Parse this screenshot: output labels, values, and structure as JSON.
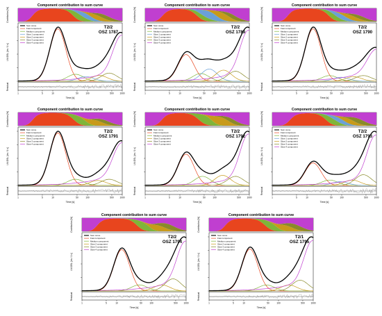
{
  "figure": {
    "panel_heading": "Component contribution to sum curve",
    "contrib_ylabel": "Contribution [%]",
    "lm_ylabel": "LM-OSL [cts / 1 s]",
    "xlabel": "Time [s]",
    "residual_label": "Residual",
    "x_ticks": [
      "1",
      "5",
      "10",
      "50",
      "100",
      "500",
      "1000"
    ]
  },
  "legend_full": [
    "Sum curve",
    "Fast component",
    "Medium component",
    "Slow 1 component",
    "Slow 2 component",
    "Slow 3 component",
    "Slow 4 component"
  ],
  "legend_reduced": [
    "Sum curve",
    "Fast component",
    "Medium component",
    "Slow 2 component",
    "Slow 3 component",
    "Slow 4 component"
  ],
  "colors": {
    "sum": "#000000",
    "fast": "#e8451e",
    "medium": "#7fb539",
    "slow1": "#6aa0d8",
    "slow2": "#c89a1a",
    "slow3": "#8a8a2a",
    "slow4": "#c03fd0",
    "residual": "#9a9a9a"
  },
  "chart_data": [
    {
      "type": "line",
      "title": "Component contribution to sum curve",
      "sample": "T2/2",
      "id": "OSZ 1787",
      "components": "full",
      "xlim": [
        1,
        1000
      ],
      "xlabel": "Time [s]",
      "ylabel": "LM-OSL [cts / 1 s]",
      "peaks": {
        "fast": {
          "t": 14,
          "h": 0.9
        },
        "medium": {
          "t": 45,
          "h": 0.12
        },
        "slow1": {
          "t": 90,
          "h": 0.08
        },
        "slow2": {
          "t": 220,
          "h": 0.1
        },
        "slow3": {
          "t": 420,
          "h": 0.14
        },
        "slow4": {
          "t": 900,
          "h": 0.55
        }
      }
    },
    {
      "type": "line",
      "title": "Component contribution to sum curve",
      "sample": "T2/2",
      "id": "OSZ 1789",
      "components": "full",
      "xlim": [
        1,
        1000
      ],
      "xlabel": "Time [s]",
      "ylabel": "LM-OSL [cts / 1 s]",
      "peaks": {
        "fast": {
          "t": 15,
          "h": 0.48
        },
        "medium": {
          "t": 40,
          "h": 0.14
        },
        "slow1": {
          "t": 70,
          "h": 0.22
        },
        "slow2": {
          "t": 180,
          "h": 0.2
        },
        "slow3": {
          "t": 400,
          "h": 0.18
        },
        "slow4": {
          "t": 900,
          "h": 0.68
        }
      }
    },
    {
      "type": "line",
      "title": "Component contribution to sum curve",
      "sample": "T2/2",
      "id": "OSZ 1790",
      "components": "full",
      "xlim": [
        1,
        1000
      ],
      "xlabel": "Time [s]",
      "ylabel": "LM-OSL [cts / 1 s]",
      "peaks": {
        "fast": {
          "t": 15,
          "h": 0.92
        },
        "medium": {
          "t": 45,
          "h": 0.1
        },
        "slow1": {
          "t": 95,
          "h": 0.07
        },
        "slow2": {
          "t": 220,
          "h": 0.08
        },
        "slow3": {
          "t": 420,
          "h": 0.1
        },
        "slow4": {
          "t": 900,
          "h": 0.32
        }
      }
    },
    {
      "type": "line",
      "title": "Component contribution to sum curve",
      "sample": "T2/2",
      "id": "OSZ 1791",
      "components": "reduced",
      "xlim": [
        1,
        1000
      ],
      "xlabel": "Time [s]",
      "ylabel": "LM-OSL [cts / 1 s]",
      "peaks": {
        "fast": {
          "t": 14,
          "h": 0.85
        },
        "medium": {
          "t": 45,
          "h": 0.1
        },
        "slow2": {
          "t": 200,
          "h": 0.08
        },
        "slow3": {
          "t": 420,
          "h": 0.1
        },
        "slow4": {
          "t": 900,
          "h": 0.45
        }
      }
    },
    {
      "type": "line",
      "title": "Component contribution to sum curve",
      "sample": "T2/2",
      "id": "OSZ 1792",
      "components": "reduced",
      "xlim": [
        1,
        1000
      ],
      "xlabel": "Time [s]",
      "ylabel": "LM-OSL [cts / 1 s]",
      "peaks": {
        "fast": {
          "t": 15,
          "h": 0.62
        },
        "medium": {
          "t": 45,
          "h": 0.18
        },
        "slow2": {
          "t": 170,
          "h": 0.2
        },
        "slow3": {
          "t": 400,
          "h": 0.18
        },
        "slow4": {
          "t": 900,
          "h": 0.78
        }
      }
    },
    {
      "type": "line",
      "title": "Component contribution to sum curve",
      "sample": "T2/2",
      "id": "OSZ 1793",
      "components": "full",
      "xlim": [
        1,
        1000
      ],
      "xlabel": "Time [s]",
      "ylabel": "LM-OSL [cts / 1 s]",
      "peaks": {
        "fast": {
          "t": 15,
          "h": 0.42
        },
        "medium": {
          "t": 45,
          "h": 0.1
        },
        "slow1": {
          "t": 90,
          "h": 0.07
        },
        "slow2": {
          "t": 200,
          "h": 0.1
        },
        "slow3": {
          "t": 420,
          "h": 0.2
        },
        "slow4": {
          "t": 900,
          "h": 0.7
        }
      }
    },
    {
      "type": "line",
      "title": "Component contribution to sum curve",
      "sample": "T2/2",
      "id": "OSZ 1794",
      "components": "reduced",
      "xlim": [
        1,
        1000
      ],
      "xlabel": "Time [s]",
      "ylabel": "LM-OSL [cts / 1 s]",
      "peaks": {
        "fast": {
          "t": 14,
          "h": 0.68
        },
        "medium": {
          "t": 45,
          "h": 0.1
        },
        "slow2": {
          "t": 200,
          "h": 0.1
        },
        "slow3": {
          "t": 420,
          "h": 0.2
        },
        "slow4": {
          "t": 900,
          "h": 0.58
        }
      }
    },
    {
      "type": "line",
      "title": "Component contribution to sum curve",
      "sample": "T2/1",
      "id": "OSZ 1795",
      "components": "reduced",
      "xlim": [
        1,
        1000
      ],
      "xlabel": "Time [s]",
      "ylabel": "LM-OSL [cts / 1 s]",
      "peaks": {
        "fast": {
          "t": 15,
          "h": 0.7
        },
        "medium": {
          "t": 45,
          "h": 0.1
        },
        "slow2": {
          "t": 200,
          "h": 0.1
        },
        "slow3": {
          "t": 420,
          "h": 0.18
        },
        "slow4": {
          "t": 900,
          "h": 0.6
        }
      }
    }
  ]
}
